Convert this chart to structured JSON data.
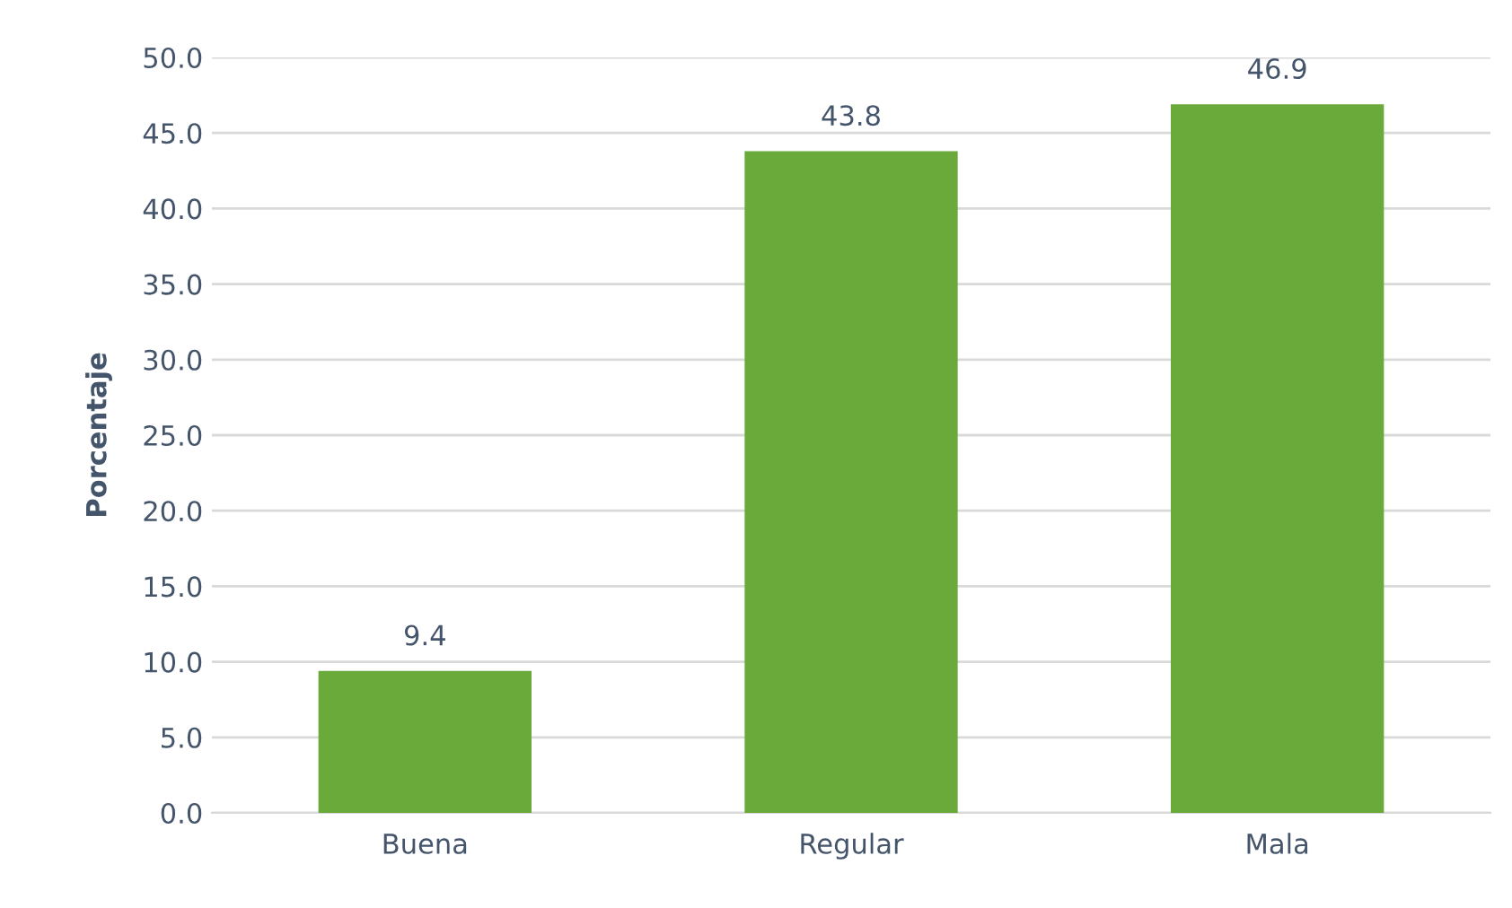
{
  "chart_data": {
    "type": "bar",
    "ylabel": "Porcentaje",
    "categories": [
      "Buena",
      "Regular",
      "Mala"
    ],
    "values": [
      9.4,
      43.8,
      46.9
    ],
    "color": "#6aaa3a",
    "ylim": [
      0,
      50
    ],
    "yticks": [
      {
        "value": 0,
        "label": "0.0"
      },
      {
        "value": 5,
        "label": "5.0"
      },
      {
        "value": 10,
        "label": "10.0"
      },
      {
        "value": 15,
        "label": "15.0"
      },
      {
        "value": 20,
        "label": "20.0"
      },
      {
        "value": 25,
        "label": "25.0"
      },
      {
        "value": 30,
        "label": "30.0"
      },
      {
        "value": 35,
        "label": "35.0"
      },
      {
        "value": 40,
        "label": "40.0"
      },
      {
        "value": 45,
        "label": "45.0"
      },
      {
        "value": 50,
        "label": "50.0"
      }
    ],
    "grid": "y",
    "data_labels": true
  }
}
